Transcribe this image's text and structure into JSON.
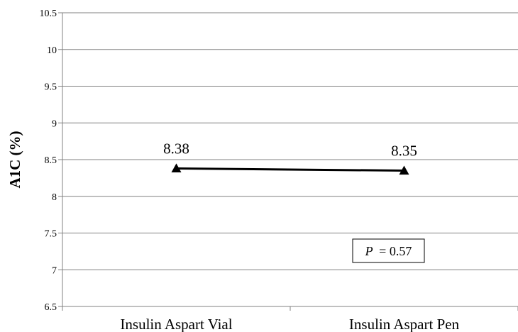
{
  "chart_data": {
    "type": "line",
    "categories": [
      "Insulin Aspart Vial",
      "Insulin Aspart Pen"
    ],
    "series": [
      {
        "values": [
          8.38,
          8.35
        ],
        "labels": [
          "8.38",
          "8.35"
        ],
        "marker": "triangle"
      }
    ],
    "ylabel": "A1C (%)",
    "ylim": [
      6.5,
      10.5
    ],
    "yticks": [
      "6.5",
      "7",
      "7.5",
      "8",
      "8.5",
      "9",
      "9.5",
      "10",
      "10.5"
    ],
    "grid": true,
    "annotation": {
      "p_label": "P",
      "p_value": "= 0.57"
    },
    "colors": {
      "line": "#000000",
      "grid": "#808080",
      "axis": "#808080"
    }
  }
}
